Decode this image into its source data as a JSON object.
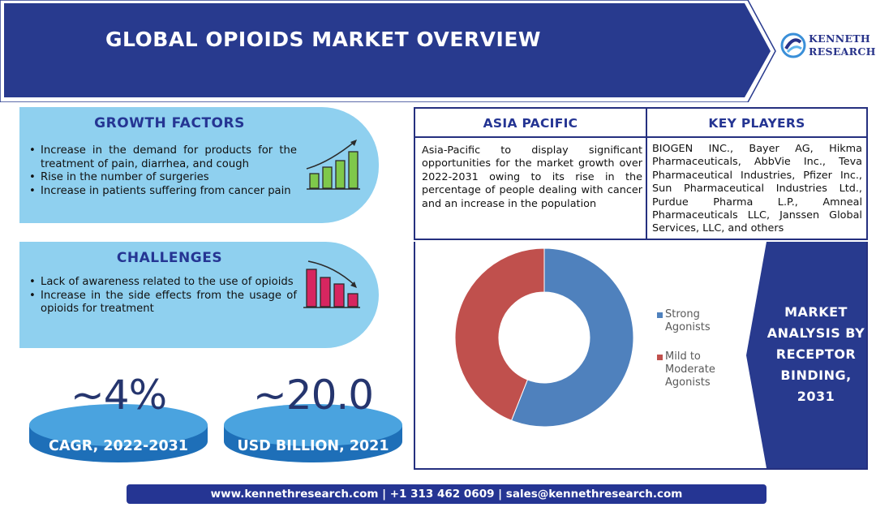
{
  "header": {
    "title": "GLOBAL OPIOIDS MARKET OVERVIEW",
    "color": "#283a8e"
  },
  "logo": {
    "line1": "KENNETH",
    "line2": "RESEARCH",
    "icon": "swirl-logo-icon"
  },
  "growth_factors": {
    "title": "GROWTH FACTORS",
    "items": [
      "Increase in the demand for products for the treatment of pain, diarrhea, and cough",
      "Rise in the number of surgeries",
      "Increase in patients suffering from cancer pain"
    ],
    "icon": "rising-bar-chart-icon"
  },
  "challenges": {
    "title": "CHALLENGES",
    "items": [
      "Lack of awareness related to the use of opioids",
      "Increase in the side effects from the usage of opioids for treatment"
    ],
    "icon": "falling-bar-chart-icon"
  },
  "stats": [
    {
      "value": "~4%",
      "label": "CAGR, 2022-2031"
    },
    {
      "value": "~20.0",
      "label": "USD BILLION, 2021"
    }
  ],
  "asia_pacific": {
    "title": "ASIA PACIFIC",
    "text": "Asia-Pacific to display significant opportunities for the market growth over 2022-2031 owing to its rise in the percentage of people dealing with cancer and an increase in the population"
  },
  "key_players": {
    "title": "KEY PLAYERS",
    "text": "BIOGEN INC., Bayer AG, Hikma Pharmaceuticals, AbbVie Inc., Teva Pharmaceutical Industries, Pfizer Inc., Sun Pharmaceutical Industries Ltd., Purdue Pharma L.P., Amneal Pharmaceuticals LLC, Janssen Global Services, LLC, and others"
  },
  "chart_data": {
    "type": "pie",
    "title": "MARKET ANALYSIS BY RECEPTOR BINDING, 2031",
    "donut": true,
    "legend_position": "right",
    "categories": [
      "Strong Agonists",
      "Mild to Moderate Agonists"
    ],
    "values": [
      56,
      44
    ],
    "colors": [
      "#4f81bd",
      "#c0504d"
    ]
  },
  "footer": {
    "text": "www.kennethresearch.com | +1 313 462 0609 | sales@kennethresearch.com"
  }
}
